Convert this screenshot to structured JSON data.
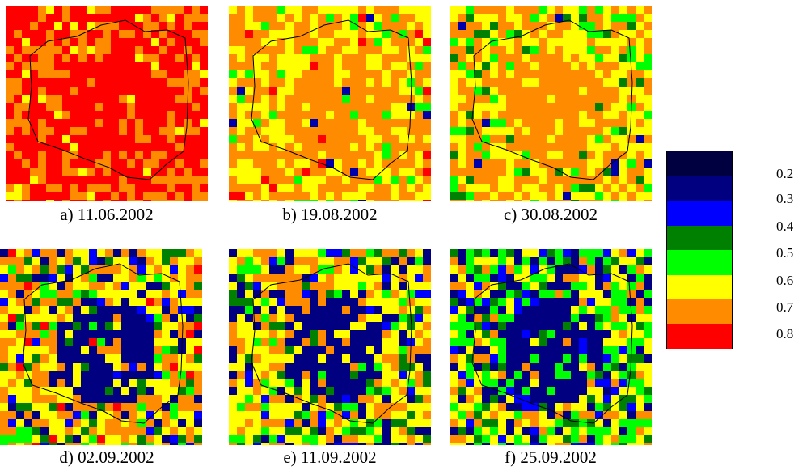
{
  "figure": {
    "panels": [
      {
        "caption": "a) 11.06.2002",
        "palette": [
          "#ff0000",
          "#ff8c00",
          "#ffff00"
        ],
        "weights": [
          0.55,
          0.4,
          0.05
        ]
      },
      {
        "caption": "b) 19.08.2002",
        "palette": [
          "#ff8c00",
          "#ffff00",
          "#00ff00",
          "#ff0000",
          "#0000aa"
        ],
        "weights": [
          0.45,
          0.42,
          0.08,
          0.03,
          0.02
        ]
      },
      {
        "caption": "c) 30.08.2002",
        "palette": [
          "#ff8c00",
          "#ffff00",
          "#00ff00",
          "#008000",
          "#0000aa"
        ],
        "weights": [
          0.42,
          0.4,
          0.09,
          0.06,
          0.03
        ]
      },
      {
        "caption": "d) 02.09.2002",
        "palette": [
          "#ffff00",
          "#ff8c00",
          "#000080",
          "#008000",
          "#0000ff",
          "#00ff00",
          "#ff0000"
        ],
        "weights": [
          0.33,
          0.32,
          0.11,
          0.09,
          0.06,
          0.06,
          0.03
        ]
      },
      {
        "caption": "e) 11.09.2002",
        "palette": [
          "#ffff00",
          "#ff8c00",
          "#000080",
          "#008000",
          "#00ff00",
          "#0000ff"
        ],
        "weights": [
          0.36,
          0.28,
          0.14,
          0.09,
          0.08,
          0.05
        ]
      },
      {
        "caption": "f) 25.09.2002",
        "palette": [
          "#ffff00",
          "#00ff00",
          "#000080",
          "#008000",
          "#ff8c00",
          "#0000ff"
        ],
        "weights": [
          0.28,
          0.24,
          0.17,
          0.12,
          0.12,
          0.07
        ]
      }
    ]
  },
  "legend": {
    "classes": [
      {
        "value": "0.2",
        "color": "#000040"
      },
      {
        "value": "0.3",
        "color": "#000080"
      },
      {
        "value": "0.4",
        "color": "#0000ff"
      },
      {
        "value": "0.5",
        "color": "#008000"
      },
      {
        "value": "0.6",
        "color": "#00ff00"
      },
      {
        "value": "0.7",
        "color": "#ffff00"
      },
      {
        "value": "0.8",
        "color": "#ff8c00"
      },
      {
        "value": "",
        "color": "#ff0000"
      }
    ]
  }
}
